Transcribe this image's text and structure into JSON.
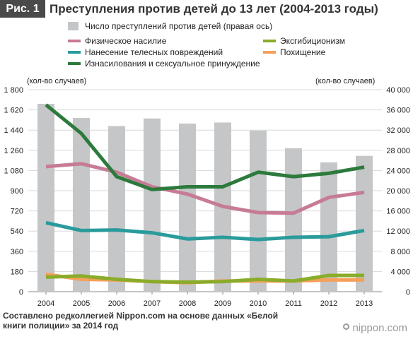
{
  "header": {
    "figure_label": "Рис. 1",
    "title": "Преступления против детей до 13 лет (2004-2013 годы)"
  },
  "footer": {
    "source": "Составлено редколлегией Nippon.com на основе данных «Белой книги полиции» за 2014 год",
    "brand": "nippon.com"
  },
  "chart_data": {
    "type": "bar+line",
    "title": "Преступления против детей до 13 лет (2004-2013 годы)",
    "left_axis_unit": "(кол-во случаев)",
    "right_axis_unit": "(кол-во случаев)",
    "categories": [
      "2004",
      "2005",
      "2006",
      "2007",
      "2008",
      "2009",
      "2010",
      "2011",
      "2012",
      "2013"
    ],
    "left_axis": {
      "min": 0,
      "max": 1800,
      "ticks": [
        "0",
        "180",
        "360",
        "540",
        "720",
        "900",
        "1 080",
        "1 260",
        "1 440",
        "1 620",
        "1 800"
      ]
    },
    "right_axis": {
      "min": 0,
      "max": 40000,
      "ticks": [
        "0",
        "4 000",
        "8 000",
        "12 000",
        "16 000",
        "20 000",
        "24 000",
        "28 000",
        "32 000",
        "36 000",
        "40 000"
      ]
    },
    "bar_series": {
      "name": "Число преступлений против детей (правая ось)",
      "color": "#c4c6c8",
      "axis": "right",
      "values": [
        37200,
        34400,
        32800,
        34300,
        33300,
        33500,
        31900,
        28400,
        25600,
        26900
      ]
    },
    "line_series": [
      {
        "name": "Физическое насилие",
        "color": "#c77b95",
        "axis": "left",
        "values": [
          1115,
          1140,
          1065,
          935,
          870,
          760,
          705,
          700,
          840,
          885
        ]
      },
      {
        "name": "Нанесение телесных повреждений",
        "color": "#2a9b9b",
        "axis": "left",
        "values": [
          615,
          545,
          550,
          525,
          470,
          485,
          465,
          485,
          490,
          545
        ]
      },
      {
        "name": "Изнасилования и сексуальное принуждение",
        "color": "#2c7a3c",
        "axis": "left",
        "values": [
          1665,
          1410,
          1025,
          910,
          935,
          935,
          1065,
          1025,
          1055,
          1110
        ]
      },
      {
        "name": "Эксгибиционизм",
        "color": "#8aac2a",
        "axis": "left",
        "values": [
          130,
          140,
          110,
          90,
          85,
          90,
          110,
          95,
          145,
          145
        ]
      },
      {
        "name": "Похищение",
        "color": "#f5a05a",
        "axis": "left",
        "values": [
          155,
          110,
          105,
          90,
          80,
          95,
          95,
          95,
          105,
          105
        ]
      }
    ],
    "legend_placement": "top",
    "grid": "horizontal"
  }
}
